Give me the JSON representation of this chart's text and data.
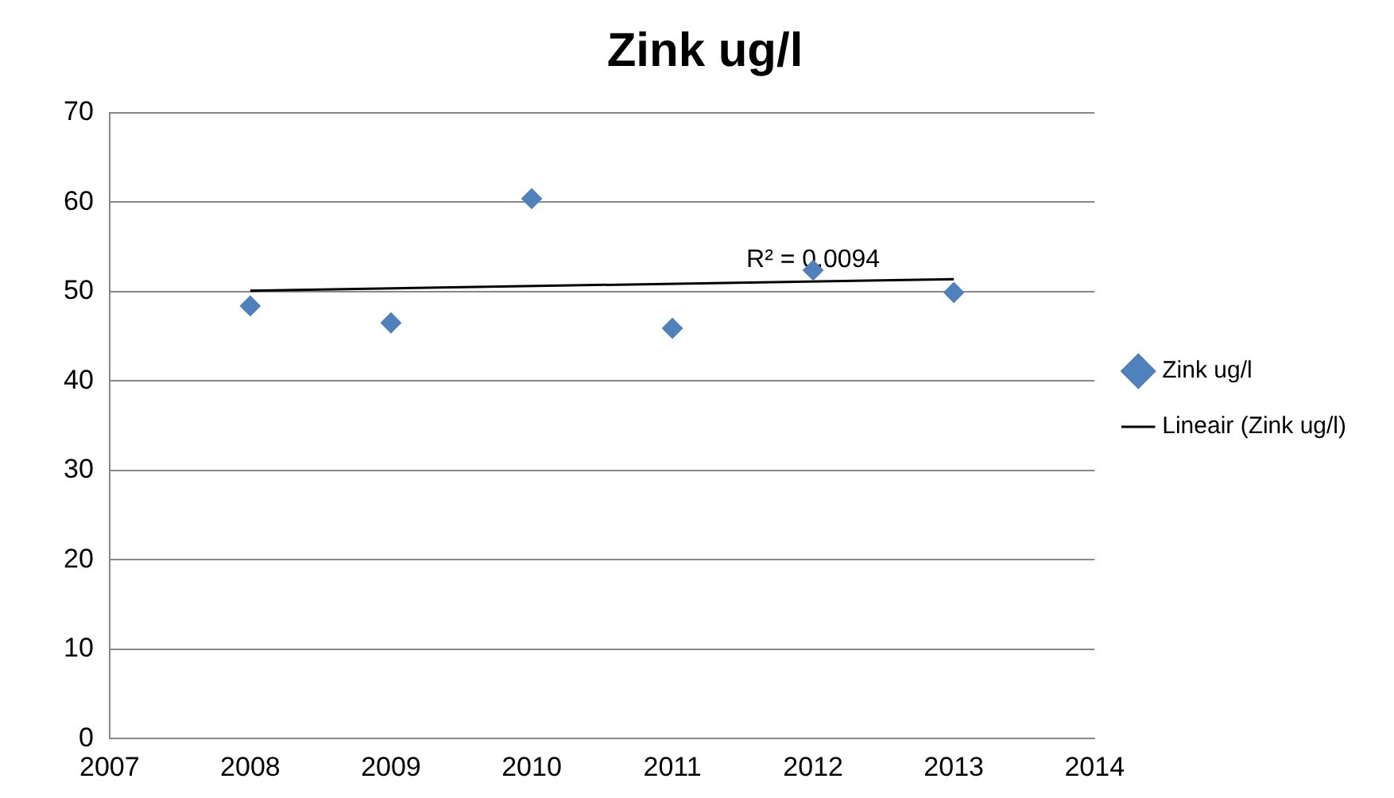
{
  "chart_data": {
    "type": "scatter",
    "title": "Zink ug/l",
    "x": [
      2008,
      2009,
      2010,
      2011,
      2012,
      2013
    ],
    "series": [
      {
        "name": "Zink ug/l",
        "color": "#4f81bd",
        "marker": "diamond",
        "values": [
          48.4,
          46.5,
          60.4,
          45.9,
          52.4,
          49.9
        ]
      },
      {
        "name": "Lineair (Zink ug/l)",
        "type": "line",
        "color": "#000000",
        "marker": "none",
        "line_style": "solid",
        "x": [
          2008,
          2013
        ],
        "values": [
          50.1,
          51.4
        ]
      }
    ],
    "annotations": [
      {
        "text": "R² = 0,0094",
        "x": 2012,
        "y": 51
      }
    ],
    "xlim": [
      2007,
      2014
    ],
    "xticks": [
      2007,
      2008,
      2009,
      2010,
      2011,
      2012,
      2013,
      2014
    ],
    "ylim": [
      0,
      70
    ],
    "yticks": [
      0,
      10,
      20,
      30,
      40,
      50,
      60,
      70
    ],
    "grid": "y",
    "legend": "right"
  }
}
